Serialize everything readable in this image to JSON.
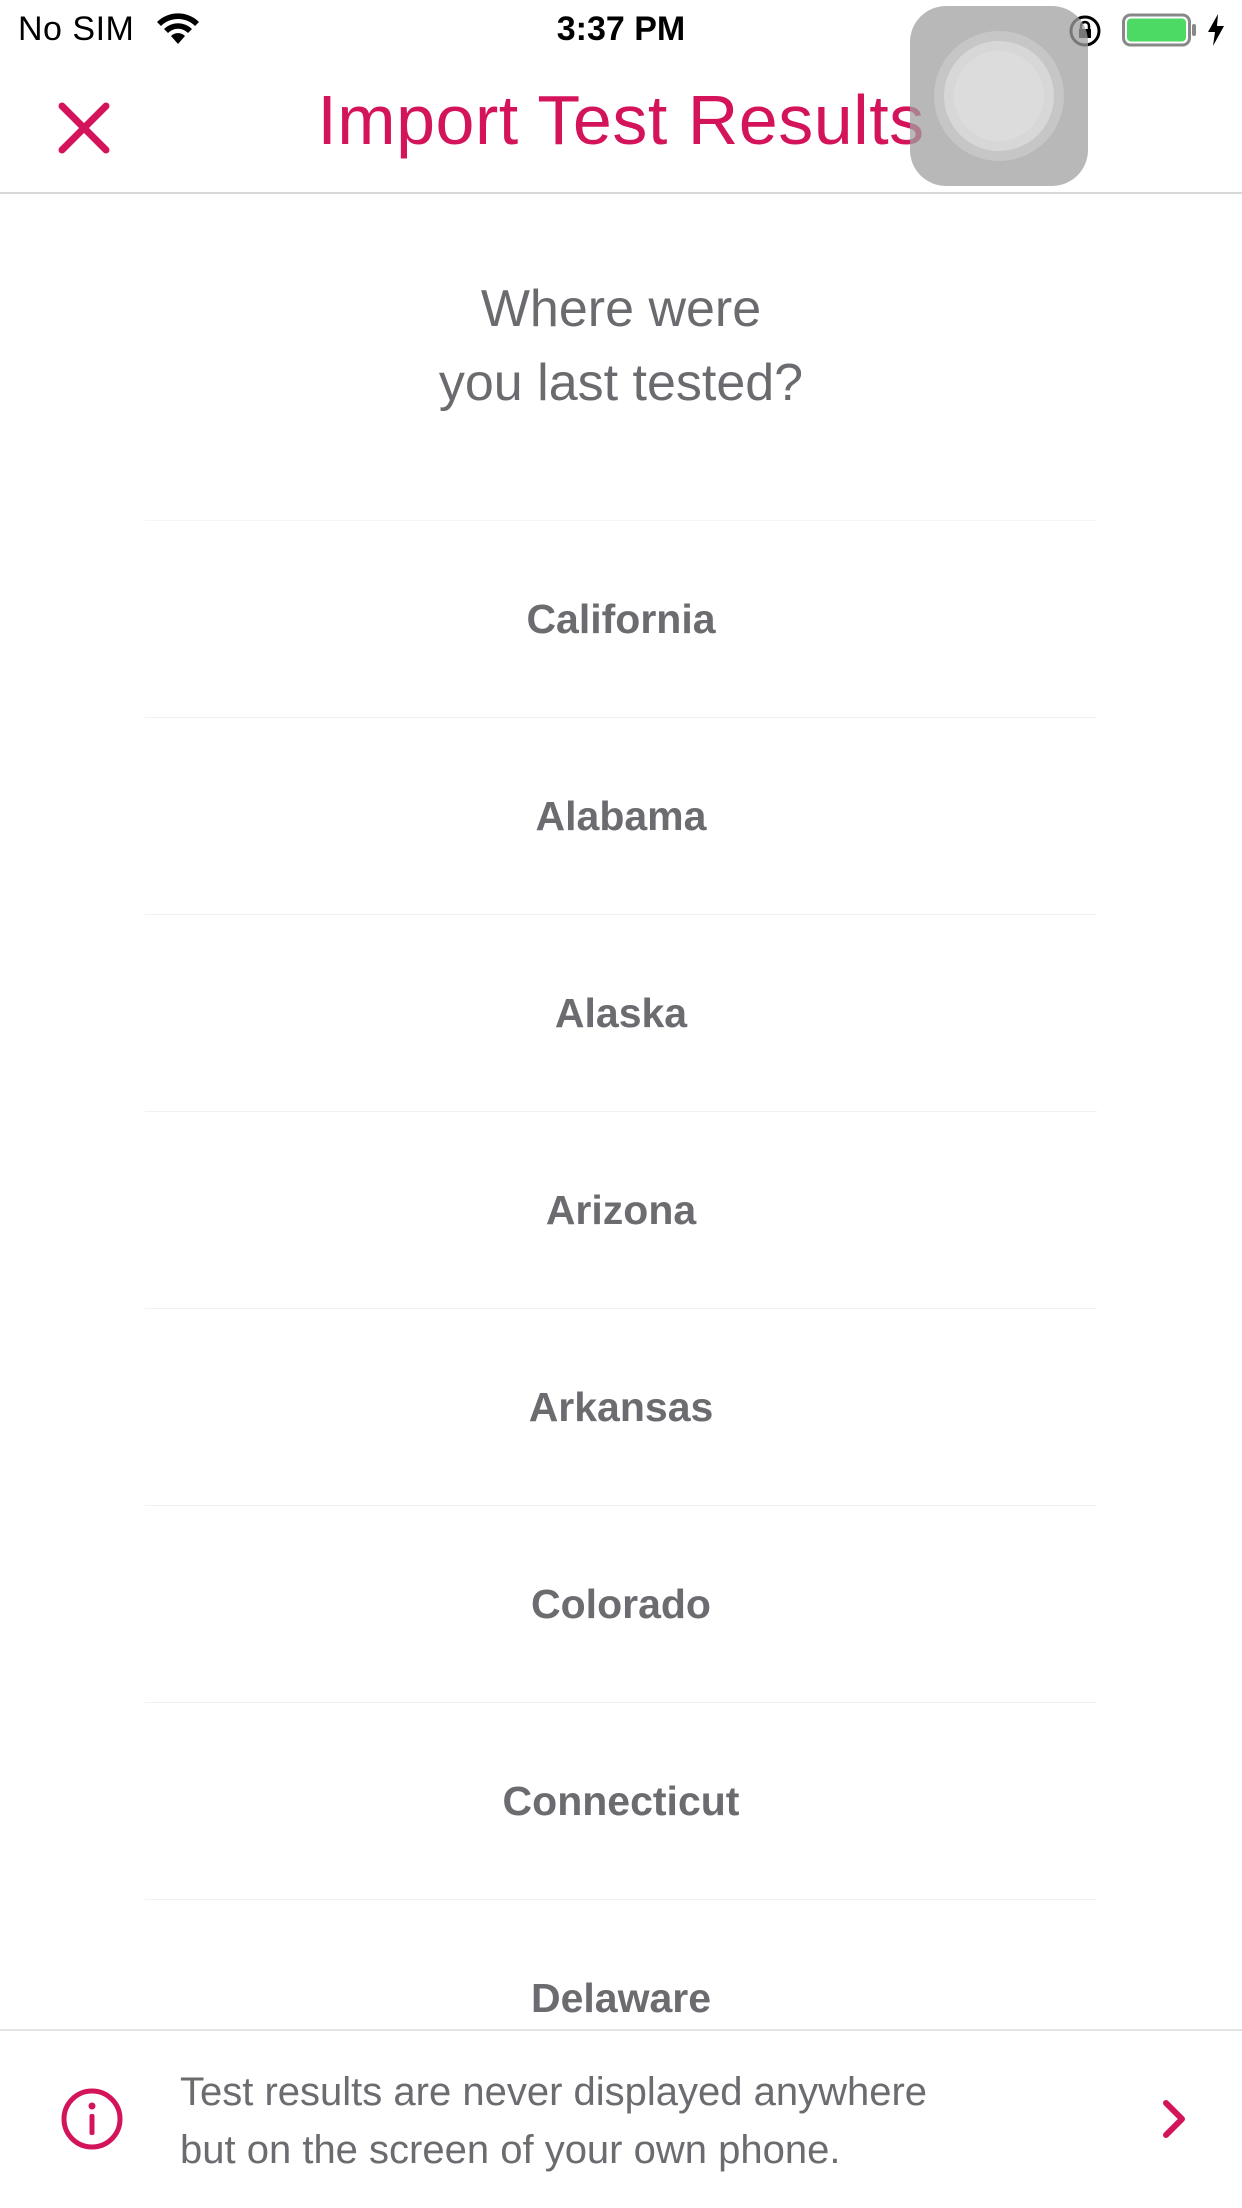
{
  "status_bar": {
    "carrier": "No SIM",
    "time": "3:37 PM",
    "battery_color": "#4cd964"
  },
  "nav": {
    "title": "Import Test Results",
    "accent_color": "#d4145a",
    "close_icon": "close-icon"
  },
  "prompt": {
    "line1": "Where were",
    "line2": "you last tested?"
  },
  "states": [
    "California",
    "Alabama",
    "Alaska",
    "Arizona",
    "Arkansas",
    "Colorado",
    "Connecticut",
    "Delaware"
  ],
  "footer": {
    "text_line1": "Test results are never displayed anywhere",
    "text_line2": "but on the screen of your own phone.",
    "info_icon": "info-icon",
    "chevron_icon": "chevron-right-icon"
  }
}
